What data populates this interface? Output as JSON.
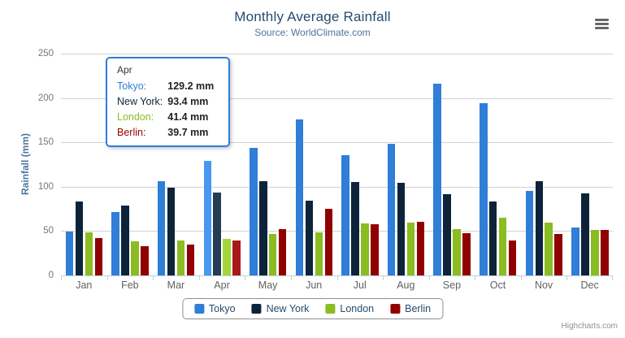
{
  "chart": {
    "title": "Monthly Average Rainfall",
    "subtitle": "Source: WorldClimate.com",
    "y_axis_title": "Rainfall (mm)",
    "credits": "Highcharts.com"
  },
  "chart_data": {
    "type": "bar",
    "title": "Monthly Average Rainfall",
    "subtitle": "Source: WorldClimate.com",
    "xlabel": "",
    "ylabel": "Rainfall (mm)",
    "ylim": [
      0,
      250
    ],
    "y_ticks": [
      0,
      50,
      100,
      150,
      200,
      250
    ],
    "grid": true,
    "legend_position": "bottom",
    "hovered_category": "Apr",
    "categories": [
      "Jan",
      "Feb",
      "Mar",
      "Apr",
      "May",
      "Jun",
      "Jul",
      "Aug",
      "Sep",
      "Oct",
      "Nov",
      "Dec"
    ],
    "series": [
      {
        "name": "Tokyo",
        "color": "#2f7ed8",
        "hover_color": "#4897f1",
        "values": [
          49.9,
          71.5,
          106.4,
          129.2,
          144.0,
          176.0,
          135.6,
          148.5,
          216.4,
          194.1,
          95.6,
          54.4
        ]
      },
      {
        "name": "New York",
        "color": "#0d233a",
        "hover_color": "#263c53",
        "values": [
          83.6,
          78.8,
          98.5,
          93.4,
          106.0,
          84.5,
          105.0,
          104.3,
          91.2,
          83.5,
          106.6,
          92.3
        ]
      },
      {
        "name": "London",
        "color": "#8bbc21",
        "hover_color": "#a4d53a",
        "values": [
          48.9,
          38.8,
          39.3,
          41.4,
          47.0,
          48.3,
          59.0,
          59.6,
          52.4,
          65.2,
          59.3,
          51.2
        ]
      },
      {
        "name": "Berlin",
        "color": "#910000",
        "hover_color": "#aa1919",
        "values": [
          42.4,
          33.2,
          34.5,
          39.7,
          52.6,
          75.5,
          57.4,
          60.4,
          47.6,
          39.1,
          46.8,
          51.1
        ]
      }
    ]
  },
  "tooltip": {
    "header": "Apr",
    "rows": [
      {
        "name": "Tokyo",
        "value": "129.2 mm",
        "color": "#2f7ed8"
      },
      {
        "name": "New York",
        "value": "93.4 mm",
        "color": "#0d233a"
      },
      {
        "name": "London",
        "value": "41.4 mm",
        "color": "#8bbc21"
      },
      {
        "name": "Berlin",
        "value": "39.7 mm",
        "color": "#910000"
      }
    ]
  }
}
